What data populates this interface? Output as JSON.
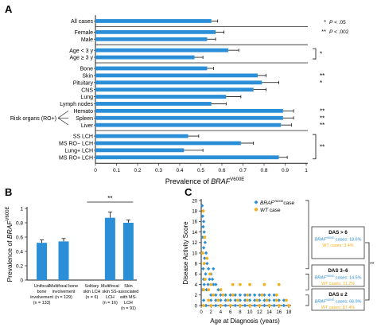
{
  "chart_data": [
    {
      "panel": "A",
      "type": "bar",
      "orientation": "horizontal",
      "xlabel": "Prevalence of ",
      "xlabel_italic": "BRAF",
      "xlabel_sup": "V600E",
      "xlim": [
        0,
        1
      ],
      "x_ticks": [
        "0",
        "0.1",
        "0.2",
        "0.3",
        "0.4",
        "0.5",
        "0.6",
        "0.7",
        "0.8",
        "0.9",
        "1"
      ],
      "categories": [
        "All cases",
        "Female",
        "Male",
        "Age < 3 y",
        "Age ≥ 3 y",
        "Bone",
        "Skin",
        "Pituitary",
        "CNS",
        "Lung",
        "Lymph nodes",
        "Hemato",
        "Spleen",
        "Liver",
        "SS LCH",
        "MS RO− LCH",
        "Lung+ LCH",
        "MS RO+ LCH"
      ],
      "values": [
        0.55,
        0.57,
        0.53,
        0.63,
        0.47,
        0.53,
        0.77,
        0.79,
        0.75,
        0.62,
        0.55,
        0.89,
        0.89,
        0.88,
        0.44,
        0.69,
        0.42,
        0.87
      ],
      "errors": [
        0.03,
        0.04,
        0.04,
        0.05,
        0.04,
        0.03,
        0.04,
        0.08,
        0.06,
        0.07,
        0.07,
        0.05,
        0.05,
        0.05,
        0.05,
        0.06,
        0.09,
        0.04
      ],
      "groups": [
        [
          0
        ],
        [
          1,
          2
        ],
        [
          3,
          4
        ],
        [
          5,
          6,
          7,
          8,
          9,
          10,
          11,
          12,
          13
        ],
        [
          14,
          15,
          16,
          17
        ]
      ],
      "group_label": {
        "text": "Risk organs (RO+)",
        "rows": [
          11,
          12,
          13
        ]
      },
      "significance": [
        {
          "rows": [
            3,
            4
          ],
          "mark": "*"
        },
        {
          "rows": [
            6
          ],
          "mark": "**"
        },
        {
          "rows": [
            7
          ],
          "mark": "*"
        },
        {
          "rows": [
            11
          ],
          "mark": "**"
        },
        {
          "rows": [
            12
          ],
          "mark": "**"
        },
        {
          "rows": [
            13
          ],
          "mark": "**"
        },
        {
          "rows": [
            14,
            17
          ],
          "mark": "**"
        }
      ],
      "legend": [
        {
          "mark": "*",
          "text": "P < .05"
        },
        {
          "mark": "**",
          "text": "P < .002"
        }
      ]
    },
    {
      "panel": "B",
      "type": "bar",
      "ylabel": "Prevalence of ",
      "ylabel_italic": "BRAF",
      "ylabel_sup": "V600E",
      "ylim": [
        0,
        1
      ],
      "y_ticks": [
        "0",
        "0.2",
        "0.4",
        "0.6",
        "0.8",
        "1"
      ],
      "categories": [
        [
          "Unifocal",
          "bone",
          "involvement",
          "(n = 133)"
        ],
        [
          "Multifocal bone",
          "involvement",
          "(n = 129)"
        ],
        [
          "Solitary",
          "skin LCH",
          "(n = 6)"
        ],
        [
          "Multifocal",
          "skin SS-",
          "LCH",
          "(n = 16)"
        ],
        [
          "Skin",
          "associated",
          "with MS-",
          "LCH",
          "(n = 91)"
        ]
      ],
      "values": [
        0.52,
        0.54,
        0,
        0.87,
        0.8
      ],
      "errors": [
        0.04,
        0.04,
        0,
        0.08,
        0.04
      ],
      "significance": {
        "from": 2,
        "to": 4,
        "mark": "**"
      }
    },
    {
      "panel": "C",
      "type": "scatter",
      "xlabel": "Age at Diagnosis (years)",
      "ylabel": "Disease Activity Score",
      "xlim": [
        0,
        18
      ],
      "ylim": [
        0,
        20
      ],
      "x_ticks": [
        "0",
        "2",
        "4",
        "6",
        "8",
        "10",
        "12",
        "14",
        "16",
        "18"
      ],
      "y_ticks": [
        "0",
        "2",
        "4",
        "6",
        "8",
        "10",
        "12",
        "14",
        "16",
        "18",
        "20"
      ],
      "legend": [
        {
          "italic": "BRAF",
          "sup": "V600E",
          "text": "case",
          "color": "#2b8fd8"
        },
        {
          "italic": "WT",
          "sup": "",
          "text": " case",
          "color": "#f2b01e"
        }
      ],
      "series": [
        {
          "color": "#2b8fd8",
          "points": [
            [
              0.2,
              19
            ],
            [
              0.3,
              17
            ],
            [
              0.5,
              16
            ],
            [
              0.4,
              15
            ],
            [
              0.6,
              14
            ],
            [
              0.3,
              13
            ],
            [
              0.8,
              12
            ],
            [
              0.5,
              11
            ],
            [
              1,
              10
            ],
            [
              0.7,
              9
            ],
            [
              1.2,
              8
            ],
            [
              0.4,
              7
            ],
            [
              1.5,
              7
            ],
            [
              0.9,
              6
            ],
            [
              2,
              6
            ],
            [
              0.5,
              5
            ],
            [
              1.7,
              5
            ],
            [
              2.3,
              5
            ],
            [
              0.6,
              4
            ],
            [
              1.4,
              4
            ],
            [
              2.5,
              4
            ],
            [
              3,
              4
            ],
            [
              0.3,
              3
            ],
            [
              1.1,
              3
            ],
            [
              3.5,
              3
            ],
            [
              2,
              2
            ],
            [
              3,
              2
            ],
            [
              4,
              2
            ],
            [
              5,
              2
            ],
            [
              6,
              2
            ],
            [
              7,
              2
            ],
            [
              8,
              2
            ],
            [
              9,
              2
            ],
            [
              10,
              2
            ],
            [
              11,
              2
            ],
            [
              12,
              2
            ],
            [
              13,
              2
            ],
            [
              14,
              2
            ],
            [
              15,
              2
            ],
            [
              0.5,
              1
            ],
            [
              2,
              1
            ],
            [
              3,
              1
            ],
            [
              4,
              1
            ],
            [
              5,
              1
            ],
            [
              6,
              1
            ],
            [
              7,
              1
            ],
            [
              8,
              1
            ],
            [
              9,
              1
            ],
            [
              10,
              1
            ],
            [
              11,
              1
            ],
            [
              12,
              1
            ],
            [
              13,
              1
            ],
            [
              14,
              1
            ],
            [
              15,
              1
            ],
            [
              16,
              1
            ],
            [
              17,
              1
            ],
            [
              1,
              0
            ],
            [
              3,
              0
            ],
            [
              5,
              0
            ],
            [
              7,
              0
            ],
            [
              9,
              0
            ],
            [
              11,
              0
            ],
            [
              13,
              0
            ],
            [
              15,
              0
            ],
            [
              17,
              0
            ],
            [
              2.5,
              7
            ]
          ]
        },
        {
          "color": "#f2b01e",
          "points": [
            [
              0.4,
              18
            ],
            [
              0.7,
              13
            ],
            [
              0.3,
              10
            ],
            [
              1.2,
              9
            ],
            [
              0.6,
              8
            ],
            [
              1.8,
              6
            ],
            [
              0.8,
              5
            ],
            [
              2,
              4
            ],
            [
              6.5,
              4
            ],
            [
              8,
              4
            ],
            [
              10,
              4
            ],
            [
              13,
              4
            ],
            [
              16,
              4
            ],
            [
              0.5,
              3
            ],
            [
              1.5,
              3
            ],
            [
              4,
              3
            ],
            [
              2.5,
              2
            ],
            [
              4.5,
              2
            ],
            [
              6.5,
              2
            ],
            [
              9.5,
              2
            ],
            [
              12.5,
              2
            ],
            [
              15.5,
              2
            ],
            [
              1.5,
              1
            ],
            [
              3.5,
              1
            ],
            [
              5.5,
              1
            ],
            [
              7.5,
              1
            ],
            [
              9.5,
              1
            ],
            [
              11.5,
              1
            ],
            [
              13.5,
              1
            ],
            [
              15.5,
              1
            ],
            [
              17.5,
              1
            ],
            [
              0.5,
              0
            ],
            [
              2,
              0
            ],
            [
              4,
              0
            ],
            [
              6,
              0
            ],
            [
              8,
              0
            ],
            [
              10,
              0
            ],
            [
              12,
              0
            ],
            [
              14,
              0
            ],
            [
              16,
              0
            ],
            [
              18,
              0
            ]
          ]
        }
      ],
      "das_boxes": [
        {
          "title": "DAS > 6",
          "lines": [
            {
              "prefix_italic": "BRAF",
              "sup": "V600E",
              "text": " cases: 18.6%",
              "color": "#2b8fd8"
            },
            {
              "text": "WT cases: 3.4%",
              "color": "#f2b01e"
            }
          ]
        },
        {
          "title": "DAS 3–6",
          "lines": [
            {
              "prefix_italic": "BRAF",
              "sup": "V600E",
              "text": " cases: 14.5%",
              "color": "#2b8fd8"
            },
            {
              "text": "WT cases: 11.2%",
              "color": "#f2b01e"
            }
          ]
        },
        {
          "title": "DAS ≤ 2",
          "lines": [
            {
              "prefix_italic": "BRAF",
              "sup": "V600E",
              "text": " cases: 66.9%",
              "color": "#2b8fd8"
            },
            {
              "text": "WT cases: 87.4%",
              "color": "#f2b01e"
            }
          ]
        }
      ],
      "significance_mark": "**"
    }
  ],
  "panel_labels": [
    "A",
    "B",
    "C"
  ],
  "colors": {
    "bar": "#2b8fd8",
    "wt": "#f2b01e",
    "axis": "#222222"
  }
}
